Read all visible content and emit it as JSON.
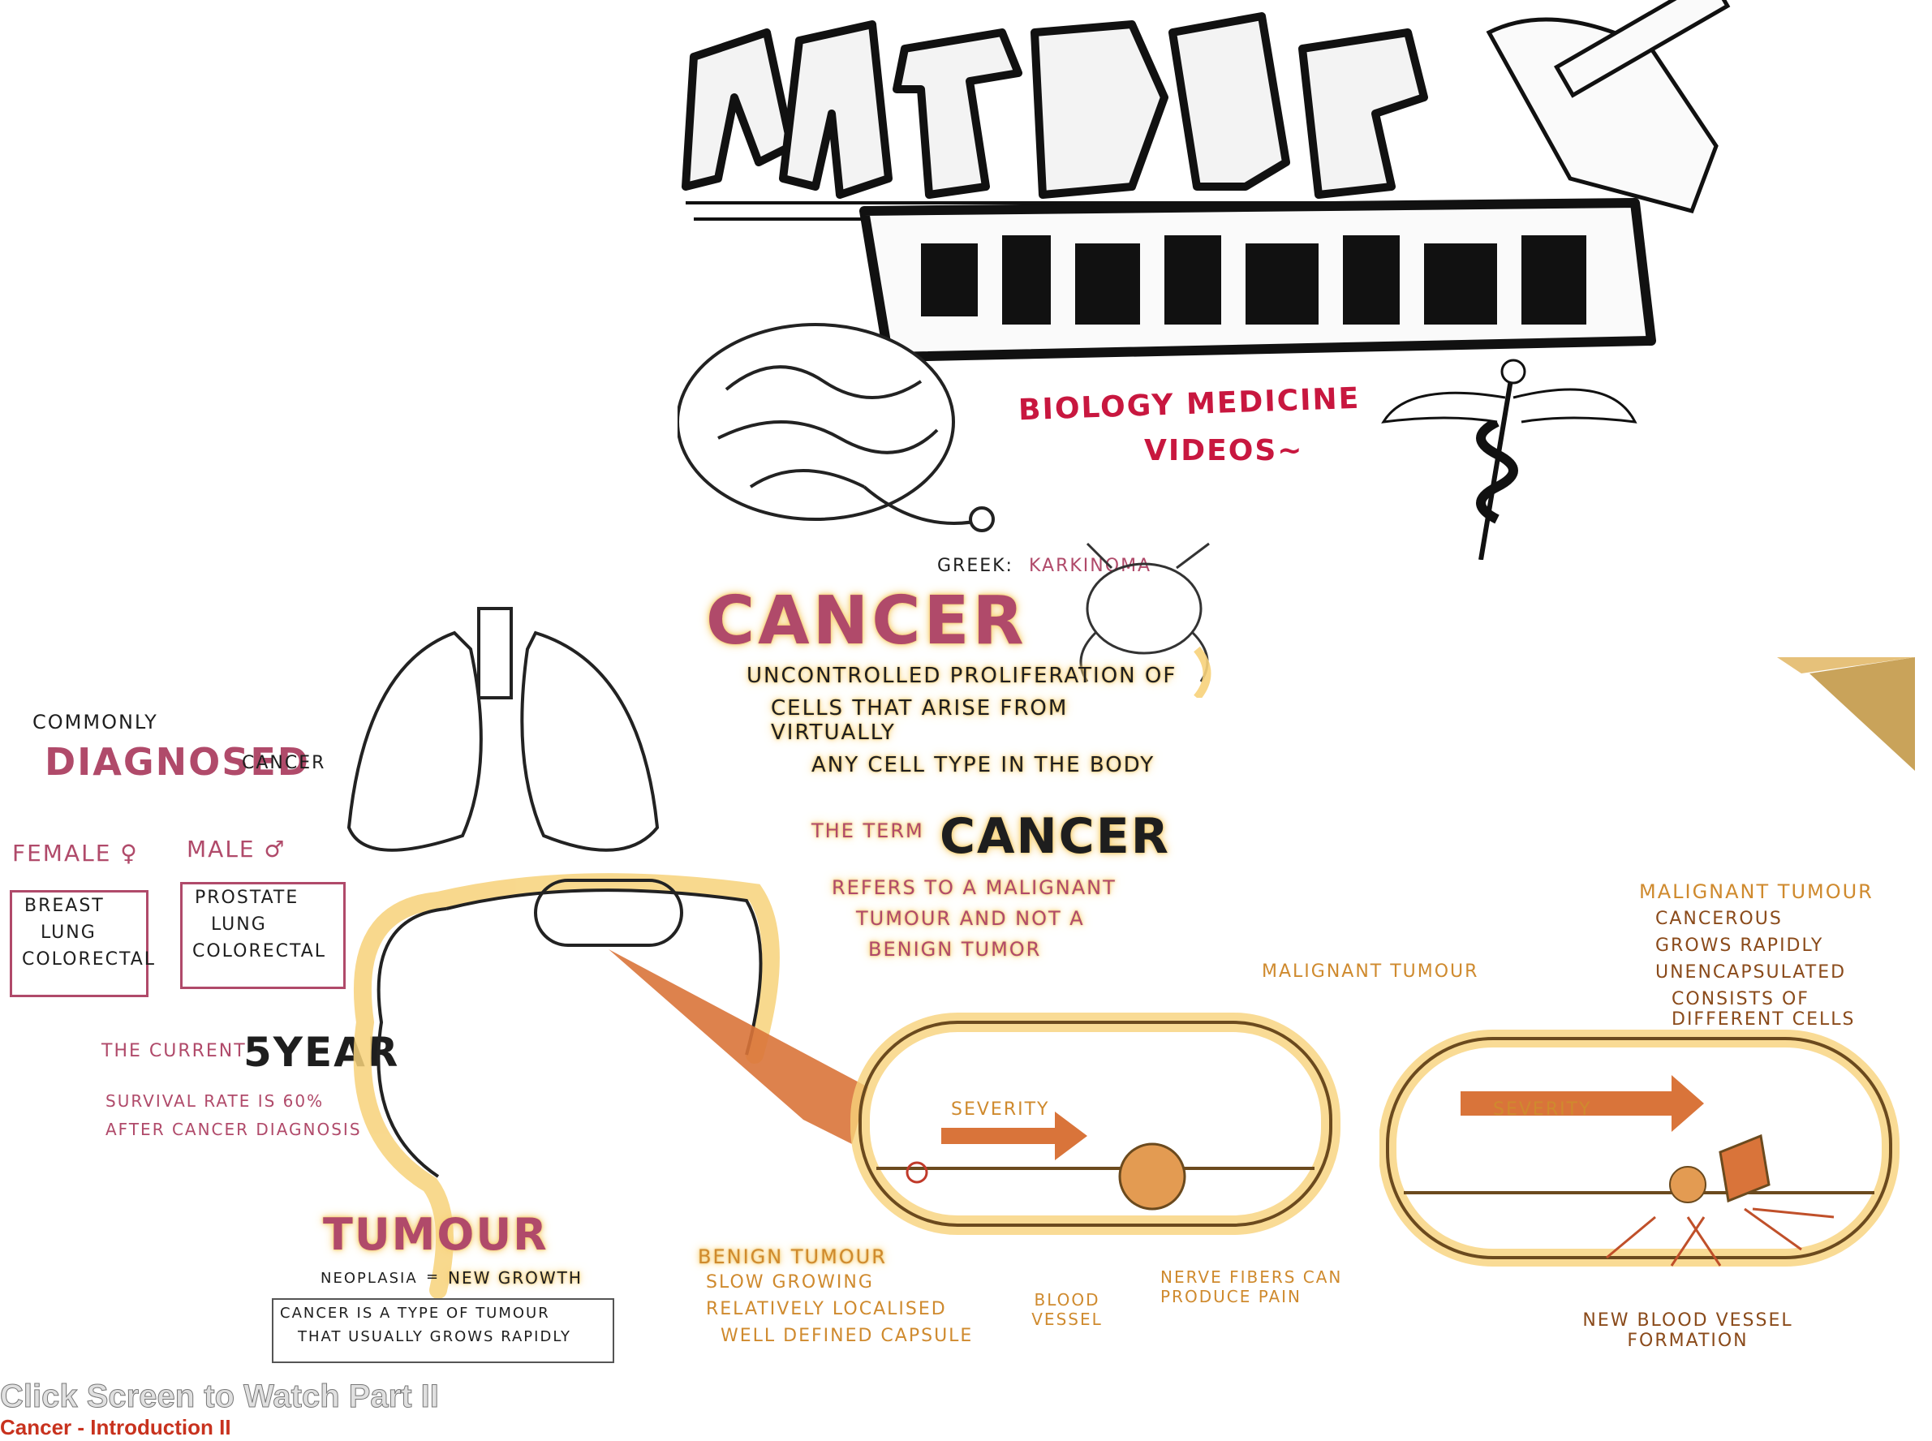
{
  "intro": {
    "subtitle_line1": "BIOLOGY MEDICINE",
    "subtitle_line2": "VIDEOS~"
  },
  "cancer_def": {
    "greek_prefix": "GREEK:",
    "greek_word": "KARKINOMA",
    "heading": "CANCER",
    "definition_lines": [
      "UNCONTROLLED PROLIFERATION OF",
      "CELLS THAT ARISE FROM VIRTUALLY",
      "ANY CELL TYPE IN THE BODY"
    ],
    "term_prefix": "THE TERM",
    "term_word": "CANCER",
    "term_lines": [
      "REFERS TO A MALIGNANT",
      "TUMOUR AND NOT A",
      "BENIGN TUMOR"
    ]
  },
  "diagnosis": {
    "commonly": "COMMONLY",
    "diagnosed": "DIAGNOSED",
    "cancer": "CANCER",
    "female_label": "FEMALE ♀",
    "male_label": "MALE ♂",
    "female_list": [
      "BREAST",
      "LUNG",
      "COLORECTAL"
    ],
    "male_list": [
      "PROSTATE",
      "LUNG",
      "COLORECTAL"
    ],
    "survival_prefix": "THE CURRENT",
    "survival_big": "5YEAR",
    "survival_line1": "SURVIVAL RATE IS 60%",
    "survival_line2": "AFTER CANCER DIAGNOSIS"
  },
  "tumour": {
    "heading": "TUMOUR",
    "neoplasia": "NEOPLASIA",
    "equals": "=",
    "new_growth": "NEW GROWTH",
    "line1": "CANCER IS A TYPE OF TUMOUR",
    "line2": "THAT USUALLY GROWS RAPIDLY"
  },
  "benign": {
    "severity": "SEVERITY",
    "heading": "BENIGN TUMOUR",
    "traits": [
      "SLOW GROWING",
      "RELATIVELY LOCALISED",
      "WELL DEFINED CAPSULE"
    ],
    "blood_vessel": "BLOOD VESSEL",
    "nerve": "NERVE FIBERS CAN PRODUCE PAIN"
  },
  "malignant": {
    "severity": "SEVERITY",
    "label_mid": "MALIGNANT TUMOUR",
    "label_top": "MALIGNANT TUMOUR",
    "traits": [
      "CANCEROUS",
      "GROWS RAPIDLY",
      "UNENCAPSULATED",
      "CONSISTS OF DIFFERENT CELLS"
    ],
    "new_vessel": "NEW BLOOD VESSEL FORMATION"
  },
  "overlay": {
    "title": "Click Screen to Watch Part II",
    "subtitle": "Cancer - Introduction II"
  },
  "colors": {
    "pink": "#b04a6a",
    "crimson": "#c8173f",
    "highlight": "#f7d27a",
    "arrow": "#d9743a",
    "overlay_title": "#e0e0e0",
    "overlay_subtitle": "#c8321e"
  }
}
